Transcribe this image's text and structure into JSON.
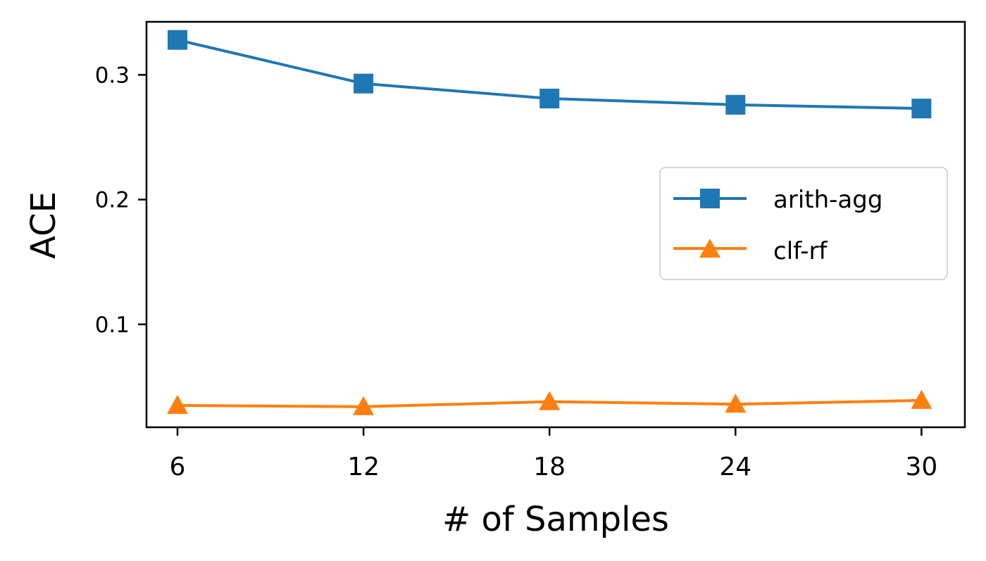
{
  "chart_data": {
    "type": "line",
    "x": [
      6,
      12,
      18,
      24,
      30
    ],
    "xlabel": "# of Samples",
    "ylabel": "ACE",
    "xticks": [
      "6",
      "12",
      "18",
      "24",
      "30"
    ],
    "yticks": [
      0.1,
      0.2,
      0.3
    ],
    "ytick_labels": [
      "0.1",
      "0.2",
      "0.3"
    ],
    "xlim": [
      5,
      31.4
    ],
    "ylim": [
      0.0175,
      0.3425
    ],
    "grid": false,
    "legend_position": "center-right",
    "series": [
      {
        "name": "arith-agg",
        "marker": "square",
        "color": "#1f77b4",
        "values": [
          0.328,
          0.293,
          0.281,
          0.276,
          0.273
        ]
      },
      {
        "name": "clf-rf",
        "marker": "triangle",
        "color": "#ff7f0e",
        "values": [
          0.035,
          0.034,
          0.038,
          0.036,
          0.039
        ]
      }
    ]
  }
}
